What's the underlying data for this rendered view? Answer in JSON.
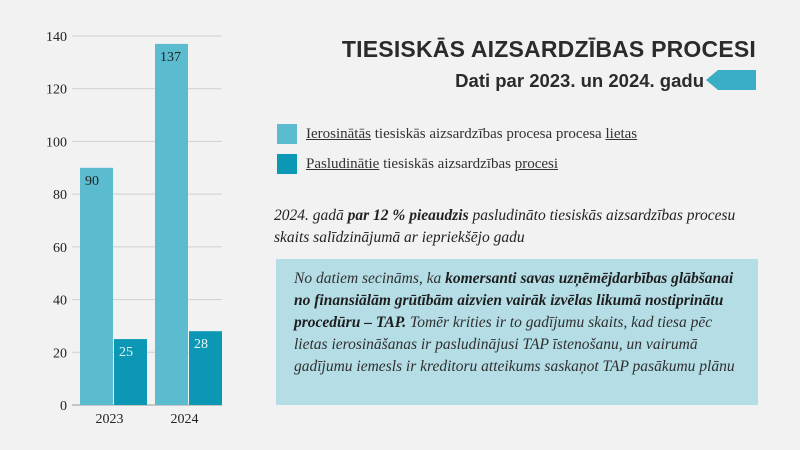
{
  "chart_data": {
    "type": "bar",
    "categories": [
      "2023",
      "2024"
    ],
    "series": [
      {
        "name": "Ierosinātās tiesiskās aizsardzības procesa procesa lietas",
        "values": [
          90,
          137
        ],
        "color": "#5bbcd0"
      },
      {
        "name": "Pasludinātie tiesiskās aizsardzības procesi",
        "values": [
          25,
          28
        ],
        "color": "#0c98b4"
      }
    ],
    "ylim": [
      0,
      140
    ],
    "yticks": [
      0,
      20,
      40,
      60,
      80,
      100,
      120,
      140
    ],
    "grid": true
  },
  "header": {
    "title": "TIESISKĀS AIZSARDZĪBAS PROCESI",
    "subtitle": "Dati par 2023. un 2024. gadu",
    "arrow_icon": "arrow-left-icon",
    "arrow_color": "#3aaec4"
  },
  "legend": {
    "item1": {
      "word_underlined": "Ierosinātās",
      "middle": " tiesiskās aizsardzības procesa procesa ",
      "end_underlined": "lietas"
    },
    "item2": {
      "word_underlined": "Pasludinātie",
      "middle": " tiesiskās aizsardzības ",
      "end_underlined": "procesi"
    }
  },
  "note": {
    "prefix": "2024. gadā ",
    "bold": "par 12 % pieaudzis",
    "suffix": " pasludināto tiesiskās aizsardzības procesu skaits salīdzinājumā ar iepriekšējo gadu"
  },
  "conclusion": {
    "prefix": "No datiem secināms, ka ",
    "bold": "komersanti savas uzņēmējdarbības glābšanai no finansiālām grūtībām aizvien vairāk izvēlas likumā nostiprinātu procedūru – TAP.",
    "suffix": " Tomēr krities ir to gadījumu skaits, kad tiesa pēc lietas ierosināšanas ir pasludinājusi TAP īstenošanu, un vairumā gadījumu iemesls ir kreditoru atteikums saskaņot TAP pasākumu plānu"
  },
  "colors": {
    "background": "#f2f2f2",
    "box": "#b5dde6",
    "text": "#2b2b2b"
  }
}
